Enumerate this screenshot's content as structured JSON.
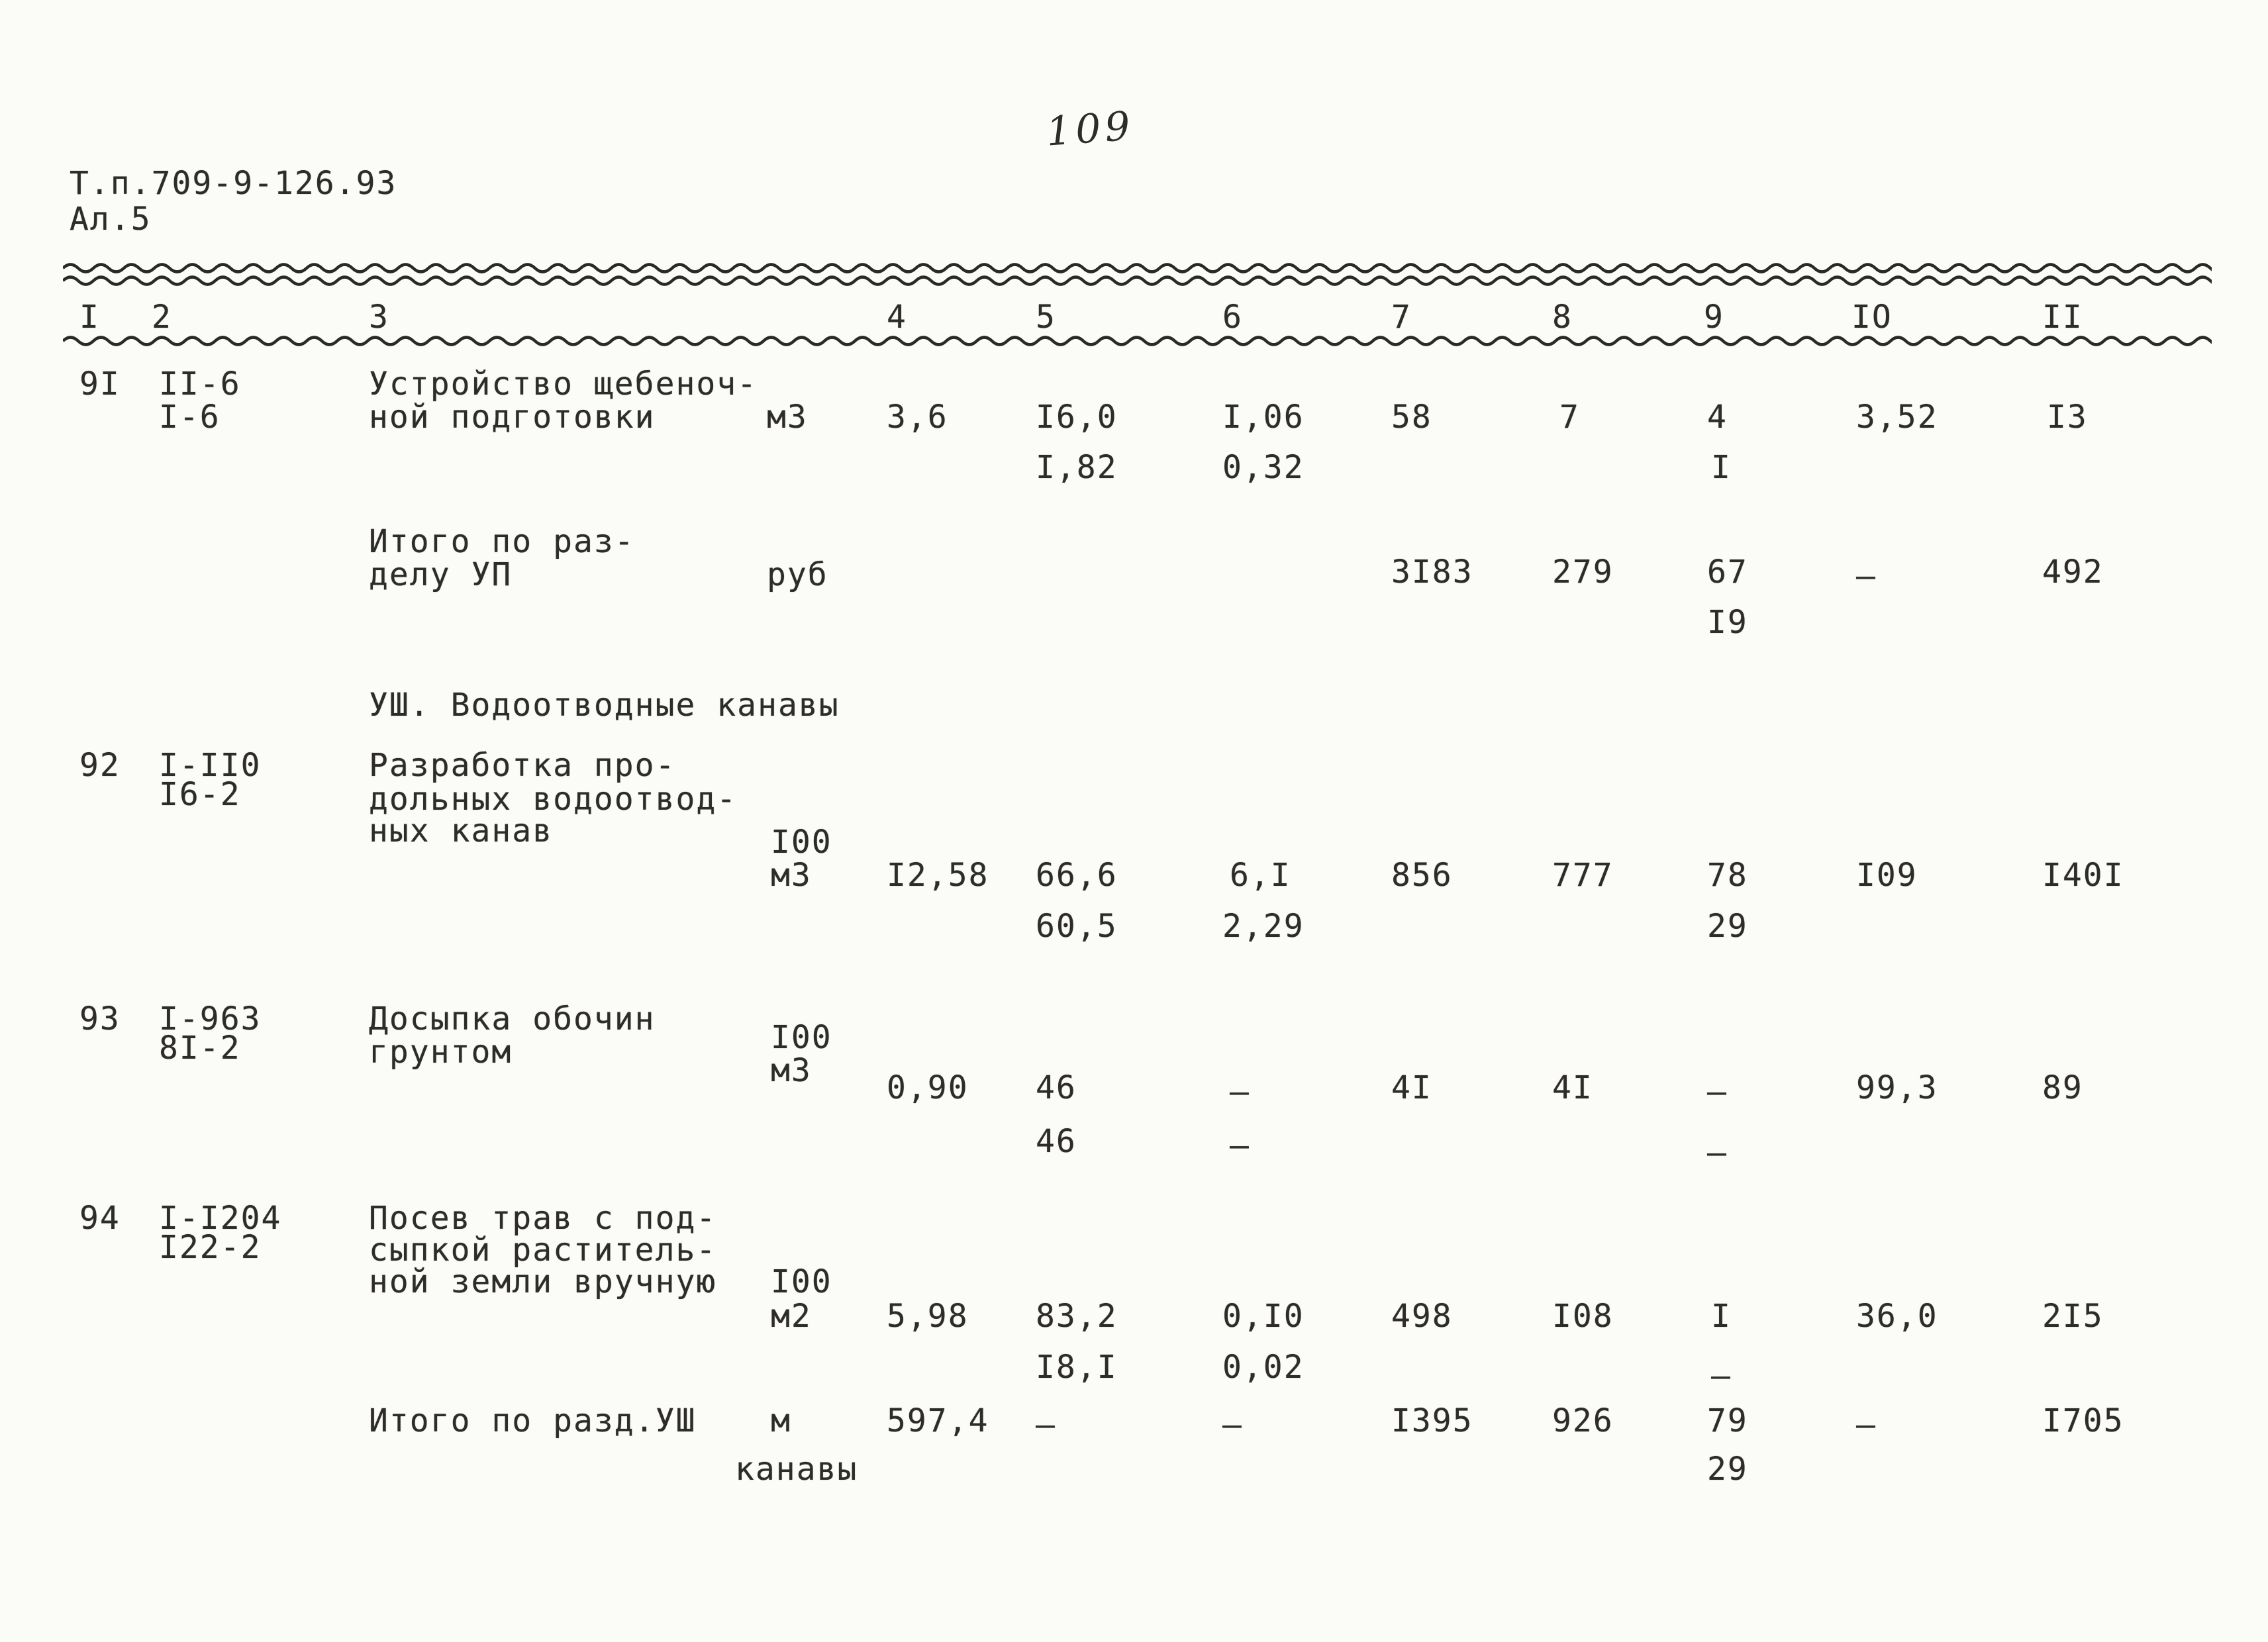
{
  "page": {
    "number": "109",
    "doc_code": "Т.п.709-9-126.93",
    "album": "Ал.5"
  },
  "columns": [
    "I",
    "2",
    "3",
    "4",
    "5",
    "6",
    "7",
    "8",
    "9",
    "IO",
    "II"
  ],
  "section8": "УШ. Водоотводные канавы",
  "r91": {
    "num": "9I",
    "codeA": "II-6",
    "codeB": "I-6",
    "name1": "Устройство щебеноч-",
    "name2": "ной подготовки",
    "unit": "м3",
    "c4": "3,6",
    "c5a": "I6,0",
    "c5b": "I,82",
    "c6a": "I,06",
    "c6b": "0,32",
    "c7": "58",
    "c8": "7",
    "c9a": "4",
    "c9b": "I",
    "c10": "3,52",
    "c11": "I3"
  },
  "totalVII": {
    "label1": "Итого по раз-",
    "label2": "делу УП",
    "unit": "руб",
    "c7": "3I83",
    "c8": "279",
    "c9a": "67",
    "c9b": "I9",
    "c10": "–",
    "c11": "492"
  },
  "r92": {
    "num": "92",
    "codeA": "I-II0",
    "codeB": "I6-2",
    "name1": "Разработка про-",
    "name2": "дольных водоотвод-",
    "name3": "ных канав",
    "unitA": "I00",
    "unitB": "м3",
    "c4": "I2,58",
    "c5a": "66,6",
    "c5b": "60,5",
    "c6a": "6,I",
    "c6b": "2,29",
    "c7": "856",
    "c8": "777",
    "c9a": "78",
    "c9b": "29",
    "c10": "I09",
    "c11": "I40I"
  },
  "r93": {
    "num": "93",
    "codeA": "I-963",
    "codeB": "8I-2",
    "name1": "Досыпка обочин",
    "name2": "грунтом",
    "unitA": "I00",
    "unitB": "м3",
    "c4": "0,90",
    "c5a": "46",
    "c5b": "46",
    "c6a": "–",
    "c6b": "–",
    "c7": "4I",
    "c8": "4I",
    "c9a": "–",
    "c9b": "–",
    "c10": "99,3",
    "c11": "89"
  },
  "r94": {
    "num": "94",
    "codeA": "I-I204",
    "codeB": "I22-2",
    "name1": "Посев трав с под-",
    "name2": "сыпкой раститель-",
    "name3": "ной земли вручную",
    "unitA": "I00",
    "unitB": "м2",
    "c4": "5,98",
    "c5a": "83,2",
    "c5b": "I8,I",
    "c6a": "0,I0",
    "c6b": "0,02",
    "c7": "498",
    "c8": "I08",
    "c9a": "I",
    "c9b": "–",
    "c10": "36,0",
    "c11": "2I5"
  },
  "totalVIII": {
    "label": "Итого по разд.УШ",
    "unitA": "м",
    "unitB": "канавы",
    "c4": "597,4",
    "c5": "–",
    "c6": "–",
    "c7": "I395",
    "c8": "926",
    "c9a": "79",
    "c9b": "29",
    "c10": "–",
    "c11": "I705"
  }
}
